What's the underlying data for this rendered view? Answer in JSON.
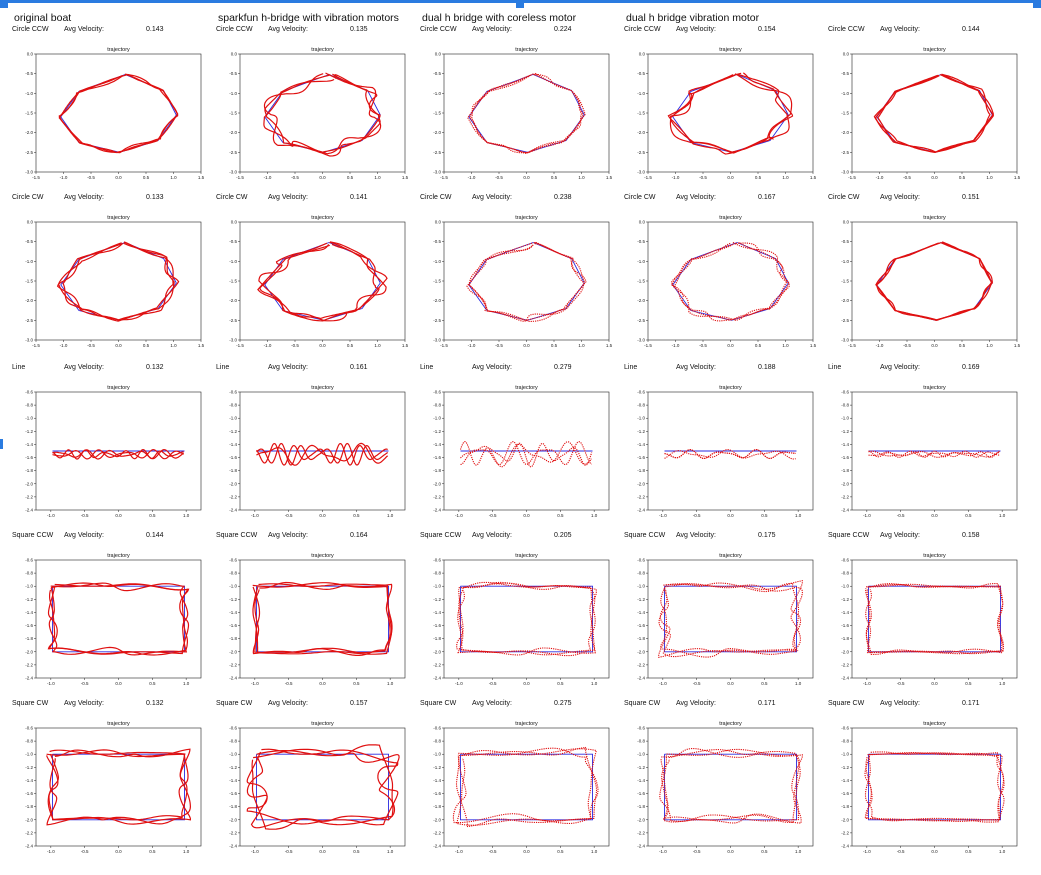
{
  "colors": {
    "target": "#2a2ae0",
    "trajectory": "#e01010",
    "accent": "#2a7be0"
  },
  "columns": [
    "original boat",
    "sparkfun h-bridge with vibration motors",
    "dual h bridge with coreless motor",
    "dual h bridge vibration motor",
    ""
  ],
  "rows": [
    "Circle CCW",
    "Circle CW",
    "Line",
    "Square CCW",
    "Square CW"
  ],
  "velocity_label": "Avg Velocity:",
  "chart_data": {
    "type": "line",
    "title": "trajectory",
    "grid": false,
    "velocities": [
      [
        "0.143",
        "0.135",
        "0.224",
        "0.154",
        "0.144"
      ],
      [
        "0.133",
        "0.141",
        "0.238",
        "0.167",
        "0.151"
      ],
      [
        "0.132",
        "0.161",
        "0.279",
        "0.188",
        "0.169"
      ],
      [
        "0.144",
        "0.164",
        "0.205",
        "0.175",
        "0.158"
      ],
      [
        "0.132",
        "0.157",
        "0.275",
        "0.171",
        "0.171"
      ]
    ],
    "circle_axes": {
      "xlim": [
        -1.5,
        1.5
      ],
      "ylim": [
        -3.0,
        0.0
      ],
      "xticks": [
        "-1.5",
        "-1.0",
        "-0.5",
        "0.0",
        "0.5",
        "1.0",
        "1.5"
      ],
      "yticks": [
        "0.0",
        "-0.5",
        "-1.0",
        "-1.5",
        "-2.0",
        "-2.5",
        "-3.0"
      ]
    },
    "line_axes": {
      "xlim": [
        -1.25,
        1.25
      ],
      "ylim": [
        -2.4,
        -0.6
      ],
      "xticks": [
        "-1.0",
        "-0.5",
        "0.0",
        "0.5",
        "1.0"
      ],
      "yticks": [
        "-0.6",
        "-0.8",
        "-1.0",
        "-1.2",
        "-1.4",
        "-1.6",
        "-1.8",
        "-2.0",
        "-2.2",
        "-2.4"
      ]
    },
    "target_paths": {
      "circle": [
        [
          0.12,
          -0.52
        ],
        [
          0.82,
          -0.93
        ],
        [
          1.05,
          -1.55
        ],
        [
          0.72,
          -2.2
        ],
        [
          0.02,
          -2.5
        ],
        [
          -0.72,
          -2.25
        ],
        [
          -1.05,
          -1.6
        ],
        [
          -0.72,
          -0.95
        ],
        [
          0.12,
          -0.52
        ]
      ],
      "line": [
        [
          -1.0,
          -1.5
        ],
        [
          1.0,
          -1.5
        ]
      ],
      "square": [
        [
          -1.0,
          -1.0
        ],
        [
          1.0,
          -1.0
        ],
        [
          1.0,
          -2.0
        ],
        [
          -1.0,
          -2.0
        ],
        [
          -1.0,
          -1.0
        ]
      ]
    }
  }
}
